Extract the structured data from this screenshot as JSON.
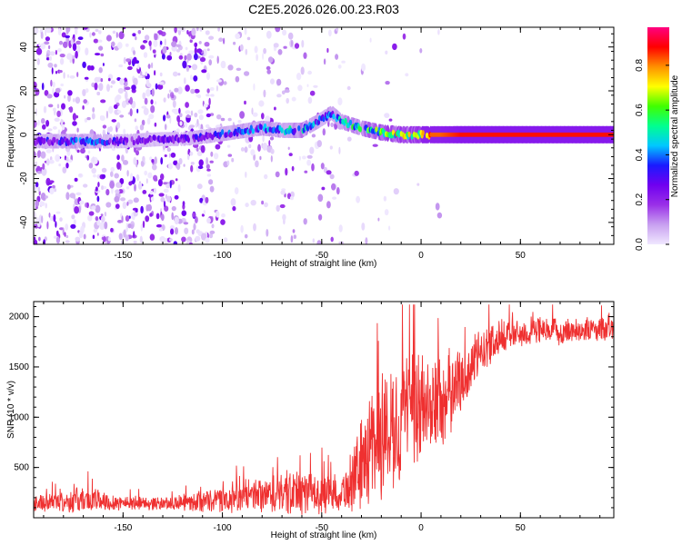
{
  "title": "C2E5.2026.026.00.23.R03",
  "chart_data": [
    {
      "type": "heatmap",
      "xlabel": "Height of straight line (km)",
      "ylabel": "Frequency (Hz)",
      "xlim": [
        -195,
        97
      ],
      "ylim": [
        -50,
        49
      ],
      "x_ticks": [
        -150,
        -100,
        -50,
        0,
        50
      ],
      "y_ticks": [
        -40,
        -20,
        0,
        20,
        40
      ],
      "colorbar": {
        "label": "Normalized spectral amplitude",
        "range": [
          0,
          0.97
        ],
        "ticks": [
          "0.0",
          "0.2",
          "0.4",
          "0.6",
          "0.8"
        ],
        "tick_values": [
          0,
          0.2,
          0.4,
          0.6,
          0.8
        ],
        "colors": [
          "#f0e8ff",
          "#c8a0f0",
          "#9a30e8",
          "#7000f0",
          "#1a1aff",
          "#00c8ff",
          "#00ff90",
          "#40ff00",
          "#ffff00",
          "#ff9000",
          "#ff0000",
          "#ff0080"
        ]
      },
      "ridge": {
        "x": [
          -195,
          -170,
          -150,
          -130,
          -120,
          -110,
          -95,
          -80,
          -70,
          -60,
          -52,
          -45,
          -40,
          -30,
          -20,
          -10,
          0,
          10,
          20,
          50,
          97
        ],
        "freq": [
          -3,
          -3,
          -3,
          -2,
          -2,
          -1,
          1,
          3,
          2,
          2,
          6,
          10,
          6,
          3,
          1,
          0,
          0,
          0,
          0,
          0,
          0
        ],
        "amplitude": [
          0.3,
          0.45,
          0.3,
          0.3,
          0.3,
          0.35,
          0.4,
          0.45,
          0.5,
          0.55,
          0.4,
          0.45,
          0.55,
          0.6,
          0.7,
          0.85,
          0.85,
          0.85,
          0.9,
          0.9,
          0.9
        ]
      }
    },
    {
      "type": "line",
      "xlabel": "Height of straight line (km)",
      "ylabel": "SNR (10 * v/v)",
      "xlim": [
        -195,
        97
      ],
      "ylim": [
        0,
        2150
      ],
      "x_ticks": [
        -150,
        -100,
        -50,
        0,
        50
      ],
      "y_ticks": [
        500,
        1000,
        1500,
        2000
      ],
      "color": "#ef3030",
      "envelope": {
        "x": [
          -195,
          -180,
          -170,
          -150,
          -130,
          -110,
          -100,
          -90,
          -80,
          -70,
          -60,
          -50,
          -40,
          -35,
          -30,
          -25,
          -20,
          -15,
          -10,
          -5,
          0,
          10,
          20,
          30,
          40,
          50,
          60,
          70,
          80,
          97
        ],
        "mean": [
          150,
          160,
          180,
          150,
          140,
          160,
          170,
          190,
          210,
          230,
          240,
          230,
          260,
          320,
          520,
          750,
          800,
          880,
          950,
          1000,
          1100,
          1150,
          1350,
          1650,
          1800,
          1830,
          1850,
          1850,
          1870,
          1870
        ],
        "amp": [
          90,
          110,
          150,
          80,
          70,
          110,
          140,
          160,
          200,
          230,
          240,
          220,
          200,
          300,
          500,
          650,
          700,
          650,
          650,
          700,
          600,
          550,
          350,
          250,
          180,
          150,
          150,
          140,
          130,
          130
        ]
      }
    }
  ]
}
